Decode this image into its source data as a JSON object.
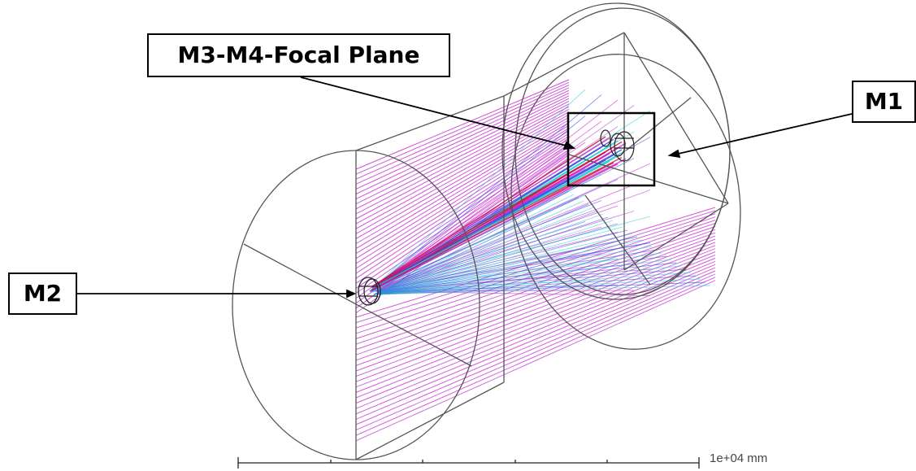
{
  "labels": {
    "m3": "M3-M4-Focal Plane",
    "m1": "M1",
    "m2": "M2"
  },
  "scale_bar": {
    "text": "1e+04 mm"
  },
  "colors": {
    "frame": "#555555",
    "ray_purple": "#b43cd2",
    "ray_magenta": "#d21ec8",
    "ray_cyan": "#28d2d2",
    "ray_red": "#c8143c",
    "ray_blue": "#3c4be6",
    "highlight_box": "#000000"
  }
}
